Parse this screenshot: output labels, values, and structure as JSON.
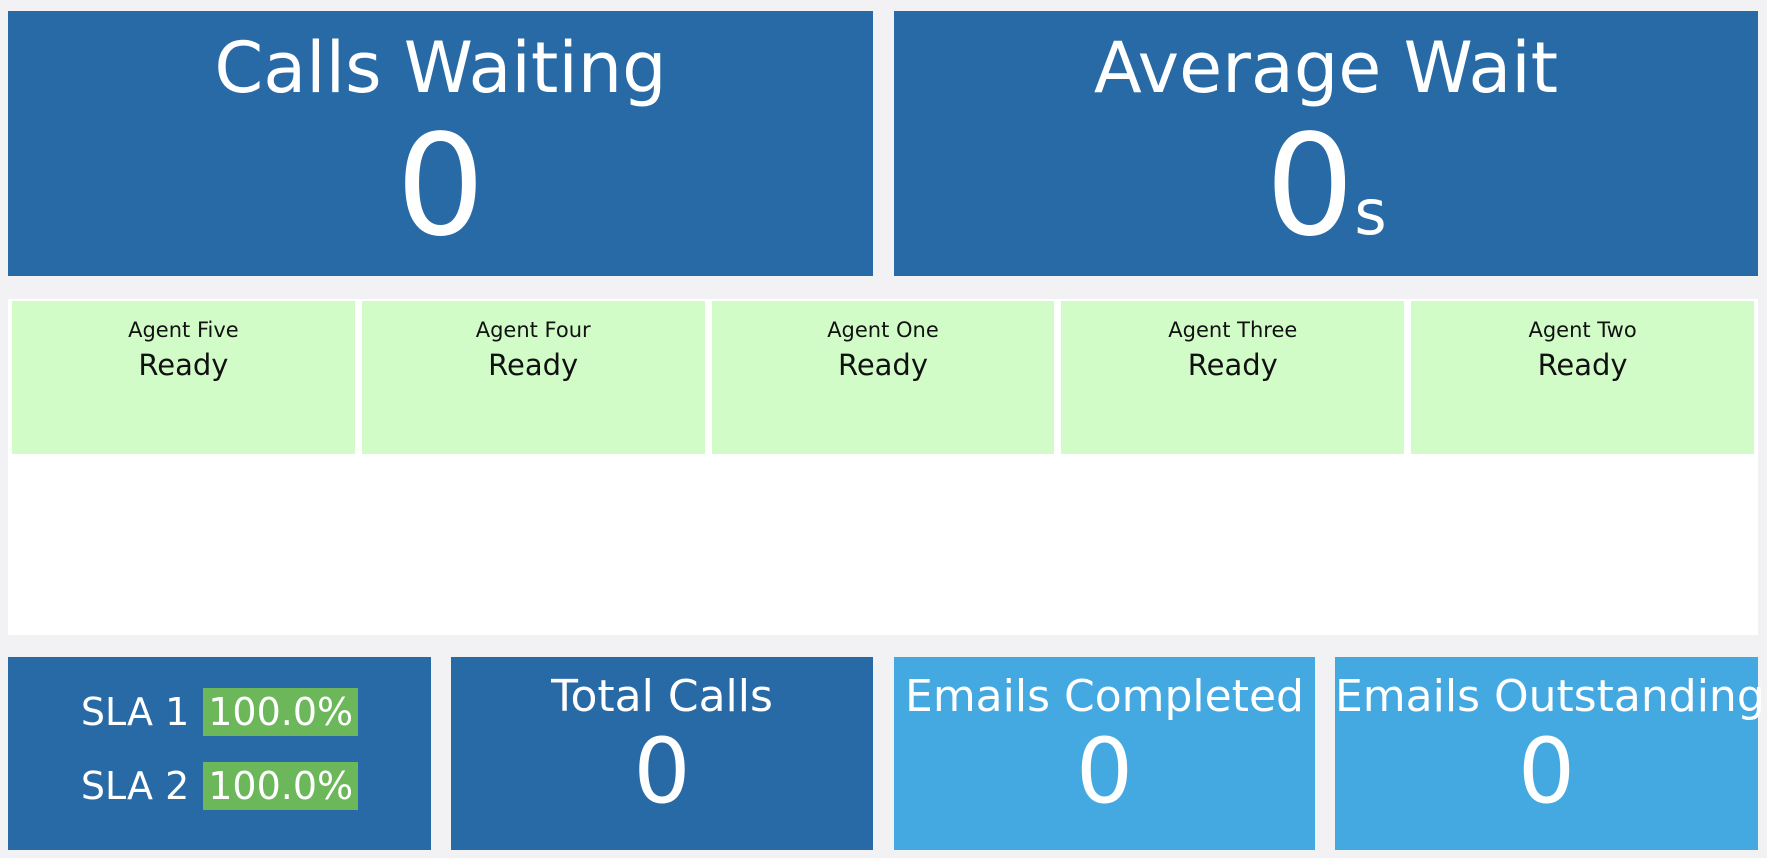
{
  "calls_waiting": {
    "title": "Calls Waiting",
    "value": "0"
  },
  "average_wait": {
    "title": "Average Wait",
    "value": "0",
    "unit": "s"
  },
  "agents": [
    {
      "name": "Agent Five",
      "status": "Ready"
    },
    {
      "name": "Agent Four",
      "status": "Ready"
    },
    {
      "name": "Agent One",
      "status": "Ready"
    },
    {
      "name": "Agent Three",
      "status": "Ready"
    },
    {
      "name": "Agent Two",
      "status": "Ready"
    }
  ],
  "sla": [
    {
      "label": "SLA 1",
      "value": "100.0%"
    },
    {
      "label": "SLA 2",
      "value": "100.0%"
    }
  ],
  "total_calls": {
    "title": "Total Calls",
    "value": "0"
  },
  "emails_completed": {
    "title": "Emails Completed",
    "value": "0"
  },
  "emails_outstanding": {
    "title": "Emails Outstanding",
    "value": "0"
  }
}
